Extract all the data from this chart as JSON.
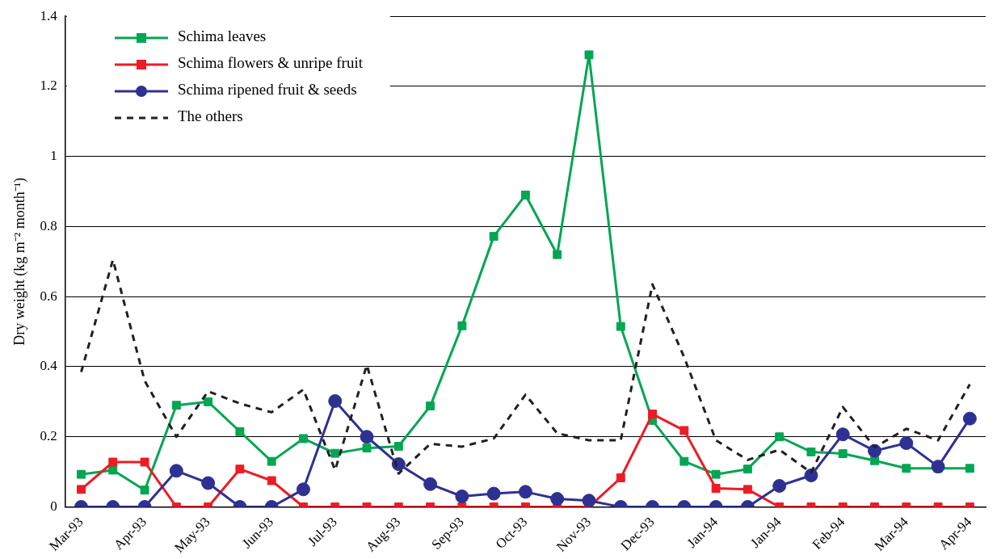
{
  "chart_data": {
    "type": "line",
    "ylabel": "Dry weight (kg m⁻² month⁻¹)",
    "categories": [
      "Mar-93",
      null,
      "Apr-93",
      null,
      "May-93",
      null,
      "Jun-93",
      null,
      "Jul-93",
      null,
      "Aug-93",
      null,
      "Sep-93",
      null,
      "Oct-93",
      null,
      "Nov-93",
      null,
      "Dec-93",
      null,
      "Jan-94",
      null,
      "Jan-94",
      null,
      "Feb-94",
      null,
      "Mar-94",
      null,
      "Apr-94"
    ],
    "ylim": [
      0,
      1.4
    ],
    "yticks": [
      0,
      0.2,
      0.4,
      0.6,
      0.8,
      1,
      1.2,
      1.4
    ],
    "grid": "y",
    "legend": "top left",
    "series": [
      {
        "name": "Schima leaves",
        "color": "#00a651",
        "marker": "square",
        "line_style": "solid",
        "values": [
          0.093,
          0.105,
          0.048,
          0.29,
          0.3,
          0.215,
          0.13,
          0.195,
          0.153,
          0.168,
          0.173,
          0.288,
          0.517,
          0.772,
          0.89,
          0.72,
          1.29,
          0.515,
          0.247,
          0.13,
          0.093,
          0.108,
          0.2,
          0.157,
          0.152,
          0.132,
          0.11,
          0.11,
          0.11
        ]
      },
      {
        "name": "Schima flowers & unripe fruit",
        "color": "#ed1c24",
        "marker": "square",
        "line_style": "solid",
        "values": [
          0.05,
          0.128,
          0.128,
          0,
          0,
          0.108,
          0.075,
          0,
          0,
          0,
          0,
          0,
          0,
          0,
          0,
          0,
          0,
          0.083,
          0.265,
          0.218,
          0.053,
          0.05,
          0,
          0,
          0,
          0,
          0,
          0,
          0
        ]
      },
      {
        "name": "Schima ripened fruit & seeds",
        "color": "#2e3192",
        "marker": "circle",
        "line_style": "solid",
        "values": [
          0,
          0,
          0,
          0.103,
          0.068,
          0,
          0,
          0.05,
          0.302,
          0.2,
          0.122,
          0.065,
          0.03,
          0.038,
          0.043,
          0.023,
          0.018,
          0,
          0,
          0,
          0,
          0,
          0.06,
          0.09,
          0.207,
          0.16,
          0.182,
          0.115,
          0.252
        ]
      },
      {
        "name": "The others",
        "color": "#231f20",
        "marker": "none",
        "line_style": "dashed",
        "values": [
          0.385,
          0.705,
          0.36,
          0.2,
          0.33,
          0.295,
          0.27,
          0.335,
          0.105,
          0.405,
          0.095,
          0.18,
          0.172,
          0.195,
          0.32,
          0.21,
          0.19,
          0.19,
          0.635,
          0.427,
          0.19,
          0.134,
          0.163,
          0.098,
          0.285,
          0.17,
          0.223,
          0.19,
          0.35
        ]
      }
    ]
  }
}
